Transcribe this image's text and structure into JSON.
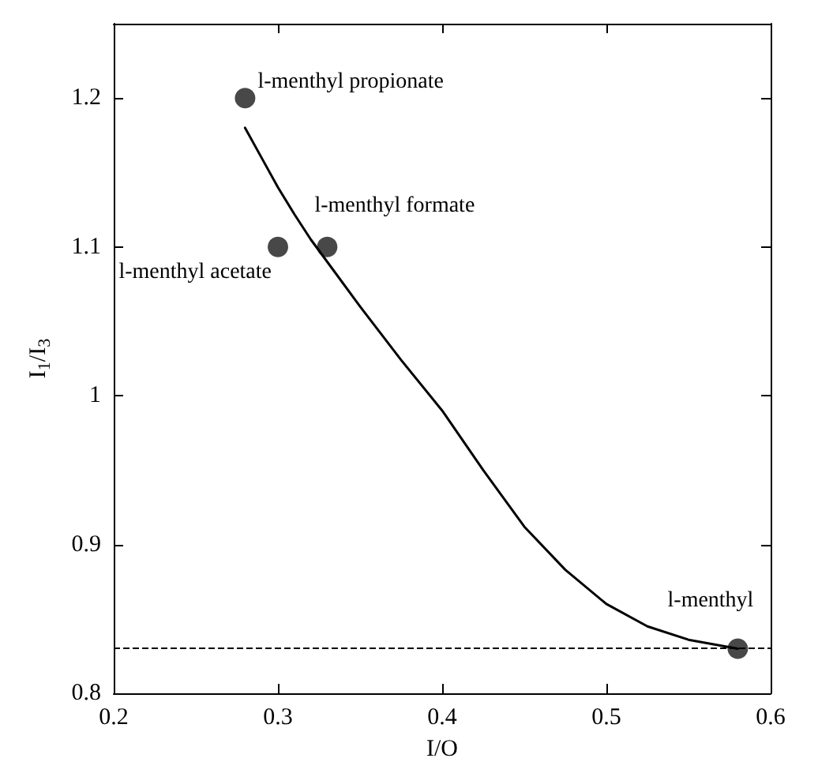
{
  "chart_data": {
    "type": "scatter",
    "xlabel": "I/O",
    "ylabel": "I$_{1}$/I$_{3}$",
    "xlim": [
      0.2,
      0.6
    ],
    "xticks": [
      0.2,
      0.3,
      0.4,
      0.5,
      0.6
    ],
    "ylim": [
      0.8,
      1.25
    ],
    "yticks": [
      0.8,
      0.9,
      1,
      1.1,
      1.2
    ],
    "grid": false,
    "series": [
      {
        "x": [
          0.28,
          0.3,
          0.33,
          0.58
        ],
        "values": [
          1.2,
          1.1,
          1.1,
          0.83
        ],
        "color": "#1a1a1a",
        "marker": "circle"
      },
      {
        "type": "line",
        "x": [
          0.28,
          0.29,
          0.3,
          0.31,
          0.32,
          0.33,
          0.35,
          0.375,
          0.4,
          0.425,
          0.45,
          0.475,
          0.5,
          0.525,
          0.55,
          0.58
        ],
        "values": [
          1.18,
          1.16,
          1.14,
          1.122,
          1.105,
          1.09,
          1.06,
          1.024,
          0.99,
          0.95,
          0.912,
          0.883,
          0.86,
          0.845,
          0.836,
          0.83
        ],
        "color": "#000000",
        "marker": "none",
        "line_style": "solid"
      }
    ],
    "ref_lines": [
      {
        "axis": "y",
        "value": 0.83,
        "line_style": "dashed",
        "color": "#000000"
      }
    ],
    "annotations": [
      {
        "text": "l-menthyl propionate",
        "x": 0.28,
        "y": 1.2
      },
      {
        "text": "l-menthyl acetate",
        "x": 0.3,
        "y": 1.1
      },
      {
        "text": "l-menthyl formate",
        "x": 0.33,
        "y": 1.1
      },
      {
        "text": "l-menthyl",
        "x": 0.58,
        "y": 0.83
      }
    ]
  }
}
